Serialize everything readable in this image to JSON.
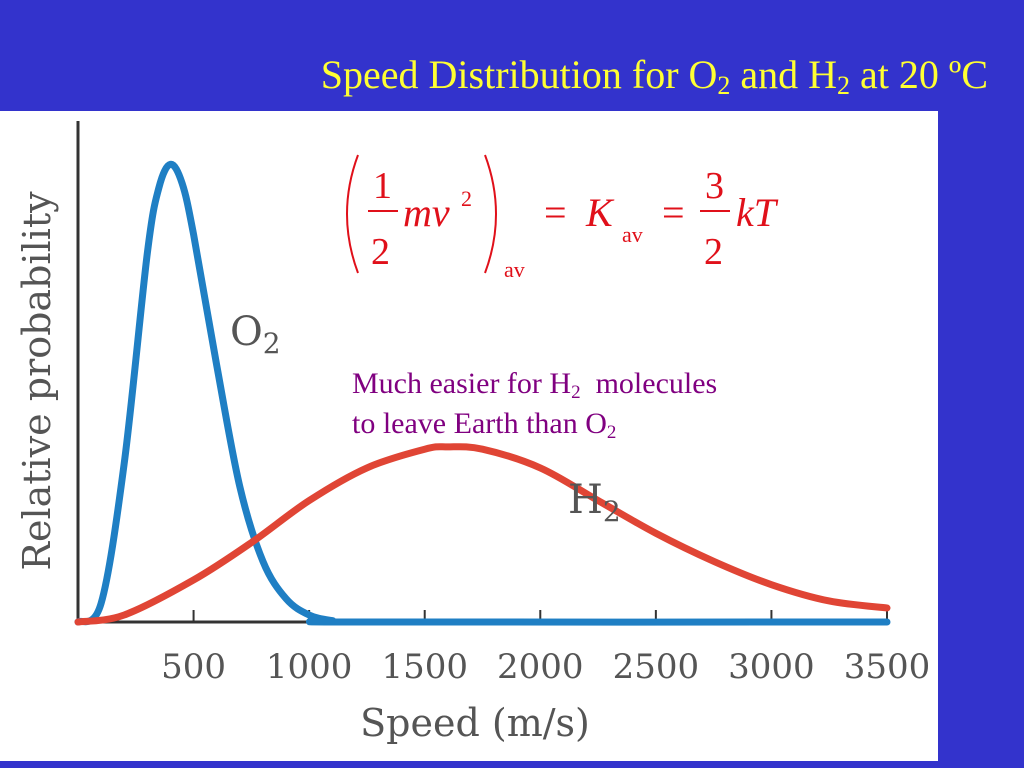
{
  "slide": {
    "title_main": "Speed Distribution for O",
    "title_sub1": "2",
    "title_mid": " and H",
    "title_sub2": "2",
    "title_end": " at 20 ºC",
    "background_color": "#3333cc",
    "title_color": "#ffff33"
  },
  "equation": {
    "half_num": "1",
    "half_den": "2",
    "mv2": "mv",
    "sq": "2",
    "av1": "av",
    "equals1": "=",
    "K": "K",
    "av2": "av",
    "equals2": "=",
    "three_num": "3",
    "three_den": "2",
    "kT": "kT",
    "color": "#e0101a"
  },
  "annotation": {
    "line1_a": "Much easier for H",
    "line1_sub": "2",
    "line1_b": "  molecules",
    "line2_a": "to leave Earth than O",
    "line2_sub": "2",
    "color": "#800080"
  },
  "chart_data": {
    "type": "line",
    "xlabel": "Speed (m/s)",
    "ylabel": "Relative probability",
    "xlim": [
      0,
      3500
    ],
    "ylim": [
      0,
      1
    ],
    "x_ticks": [
      500,
      1000,
      1500,
      2000,
      2500,
      3000,
      3500
    ],
    "grid": false,
    "series": [
      {
        "name": "O2",
        "label_base": "O",
        "label_sub": "2",
        "color": "#1f7fc4",
        "points": [
          [
            0,
            0
          ],
          [
            100,
            0.04
          ],
          [
            200,
            0.34
          ],
          [
            300,
            0.79
          ],
          [
            350,
            0.93
          ],
          [
            400,
            0.98
          ],
          [
            450,
            0.94
          ],
          [
            500,
            0.83
          ],
          [
            600,
            0.55
          ],
          [
            700,
            0.29
          ],
          [
            800,
            0.13
          ],
          [
            900,
            0.05
          ],
          [
            1000,
            0.015
          ],
          [
            1100,
            0.003
          ],
          [
            1200,
            0.0
          ],
          [
            3500,
            0.0
          ]
        ]
      },
      {
        "name": "H2",
        "label_base": "H",
        "label_sub": "2",
        "color": "#e04535",
        "points": [
          [
            0,
            0
          ],
          [
            200,
            0.015
          ],
          [
            500,
            0.09
          ],
          [
            750,
            0.17
          ],
          [
            1000,
            0.26
          ],
          [
            1250,
            0.33
          ],
          [
            1500,
            0.37
          ],
          [
            1600,
            0.375
          ],
          [
            1750,
            0.37
          ],
          [
            2000,
            0.33
          ],
          [
            2250,
            0.26
          ],
          [
            2500,
            0.19
          ],
          [
            2750,
            0.13
          ],
          [
            3000,
            0.08
          ],
          [
            3250,
            0.045
          ],
          [
            3500,
            0.03
          ]
        ]
      }
    ]
  }
}
